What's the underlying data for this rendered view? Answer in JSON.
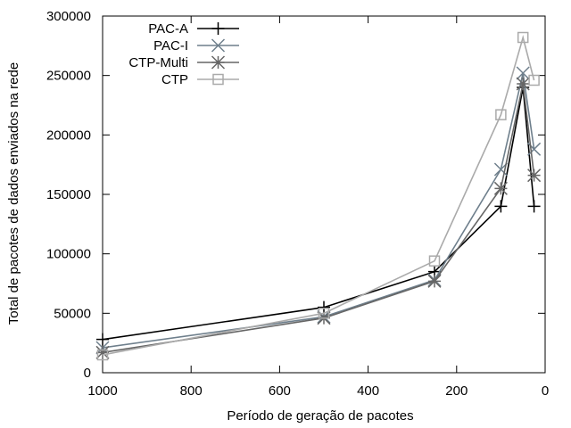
{
  "chart_data": {
    "type": "line",
    "xlabel": "Período de geração de pacotes",
    "ylabel": "Total de pacotes de dados enviados na rede",
    "xlim": [
      1000,
      0
    ],
    "ylim": [
      0,
      300000
    ],
    "x_reversed": true,
    "x_ticks": [
      1000,
      800,
      600,
      400,
      200,
      0
    ],
    "y_ticks": [
      0,
      50000,
      100000,
      150000,
      200000,
      250000,
      300000
    ],
    "grid": false,
    "legend_position": "top-left",
    "series": [
      {
        "name": "PAC-A",
        "color": "#000000",
        "marker": "plus",
        "points": [
          [
            1000,
            28000
          ],
          [
            500,
            55000
          ],
          [
            250,
            85000
          ],
          [
            100,
            140000
          ],
          [
            50,
            240000
          ],
          [
            25,
            140000
          ]
        ]
      },
      {
        "name": "PAC-I",
        "color": "#6e7f8c",
        "marker": "cross",
        "points": [
          [
            1000,
            21000
          ],
          [
            500,
            47000
          ],
          [
            250,
            78000
          ],
          [
            100,
            171000
          ],
          [
            50,
            252000
          ],
          [
            25,
            188000
          ]
        ]
      },
      {
        "name": "CTP-Multi",
        "color": "#666666",
        "marker": "star",
        "points": [
          [
            1000,
            17000
          ],
          [
            500,
            46000
          ],
          [
            250,
            77000
          ],
          [
            100,
            155000
          ],
          [
            50,
            243000
          ],
          [
            25,
            166000
          ]
        ]
      },
      {
        "name": "CTP",
        "color": "#aaaaaa",
        "marker": "square",
        "points": [
          [
            1000,
            15000
          ],
          [
            500,
            50000
          ],
          [
            250,
            94000
          ],
          [
            100,
            217000
          ],
          [
            50,
            282000
          ],
          [
            25,
            246000
          ]
        ]
      }
    ]
  }
}
